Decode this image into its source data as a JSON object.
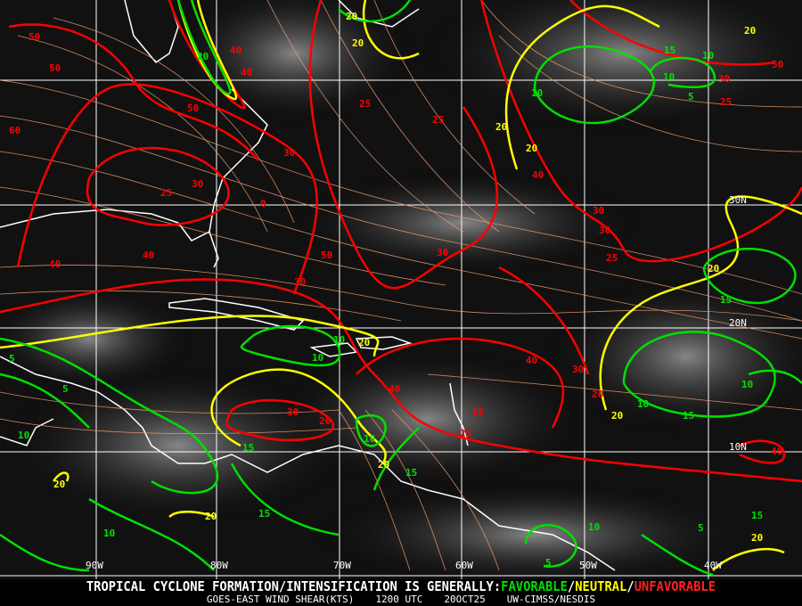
{
  "map": {
    "colors": {
      "favorable": "#00e000",
      "neutral": "#ffff00",
      "unfavorable": "#ff0000",
      "streamlines": "#f0a070",
      "grid": "#ffffff",
      "coastline": "#ffffff"
    },
    "longitude_labels": [
      "90W",
      "80W",
      "70W",
      "60W",
      "50W",
      "40W"
    ],
    "latitude_labels": [
      "30N",
      "20N",
      "10N"
    ],
    "contour_labels": {
      "red": [
        "50",
        "50",
        "40",
        "60",
        "50",
        "25",
        "30",
        "0",
        "30",
        "40",
        "25",
        "25",
        "40",
        "30",
        "30",
        "25",
        "30",
        "40",
        "50",
        "30",
        "30",
        "40",
        "30",
        "20",
        "25",
        "25",
        "20",
        "40",
        "25",
        "30",
        "50",
        "40",
        "40"
      ],
      "yellow": [
        "20",
        "20",
        "20",
        "20",
        "20",
        "20",
        "20",
        "20",
        "20",
        "20",
        "20",
        "20"
      ],
      "green": [
        "10",
        "20",
        "10",
        "15",
        "10",
        "5",
        "10",
        "10",
        "15",
        "10",
        "10",
        "15",
        "5",
        "5",
        "10",
        "15",
        "10",
        "10",
        "15",
        "15",
        "10",
        "5",
        "15",
        "5"
      ]
    }
  },
  "caption": {
    "prefix": "TROPICAL CYCLONE FORMATION/INTENSIFICATION IS GENERALLY:",
    "favorable": "FAVORABLE",
    "sep1": "/",
    "neutral": "NEUTRAL",
    "sep2": "/",
    "unfavorable": "UNFAVORABLE",
    "product": "GOES-EAST WIND SHEAR(KTS)",
    "time": "1200 UTC",
    "date": "20OCT25",
    "source": "UW-CIMSS/NESDIS"
  }
}
